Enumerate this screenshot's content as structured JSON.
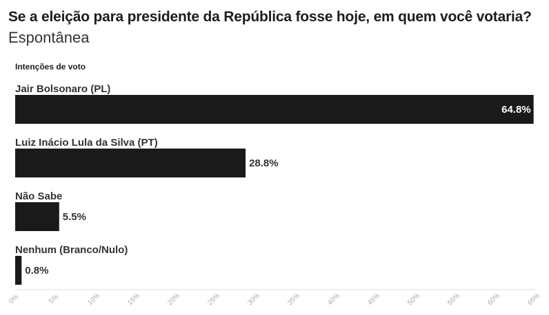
{
  "header": {
    "title": "Se a eleição para presidente da República fosse hoje, em quem você votaria?",
    "subtitle": "Espontânea"
  },
  "colors": {
    "bar": "#1a1a1a",
    "value_outside": "#333333",
    "value_inside": "#ffffff",
    "axis_line": "#dddddd",
    "tick_label": "#aaaaaa"
  },
  "chart_data": {
    "type": "bar",
    "orientation": "horizontal",
    "caption": "Intenções de voto",
    "categories": [
      "Jair Bolsonaro (PL)",
      "Luiz Inácio Lula da Silva (PT)",
      "Não Sabe",
      "Nenhum (Branco/Nulo)"
    ],
    "values": [
      64.8,
      28.8,
      5.5,
      0.8
    ],
    "value_labels": [
      "64.8%",
      "28.8%",
      "5.5%",
      "0.8%"
    ],
    "xlim": [
      0,
      65
    ],
    "x_ticks": [
      0,
      5,
      10,
      15,
      20,
      25,
      30,
      35,
      40,
      45,
      50,
      55,
      60,
      65
    ],
    "x_tick_labels": [
      "0%",
      "5%",
      "10%",
      "15%",
      "20%",
      "25%",
      "30%",
      "35%",
      "40%",
      "45%",
      "50%",
      "55%",
      "60%",
      "65%"
    ],
    "grid": false
  }
}
